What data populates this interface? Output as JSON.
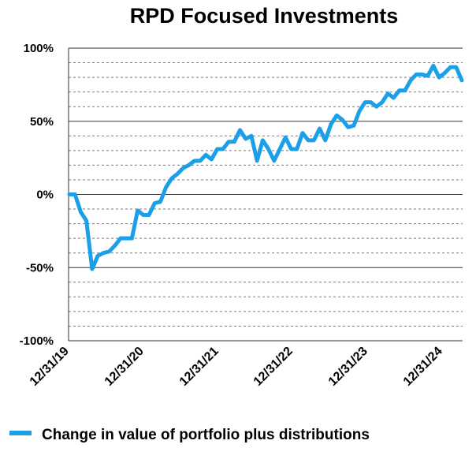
{
  "chart_data": {
    "type": "line",
    "title": "RPD Focused Investments",
    "xlabel": "",
    "ylabel": "",
    "ylim": [
      -100,
      100
    ],
    "y_ticks": [
      {
        "value": 100,
        "label": "100%"
      },
      {
        "value": 50,
        "label": "50%"
      },
      {
        "value": 0,
        "label": "0%"
      },
      {
        "value": -50,
        "label": "-50%"
      },
      {
        "value": -100,
        "label": "-100%"
      }
    ],
    "x_ticks": [
      "12/31/19",
      "12/31/20",
      "12/31/21",
      "12/31/22",
      "12/31/23",
      "12/31/24"
    ],
    "minor_gridline_step": 10,
    "major_gridline_step": 50,
    "grid": true,
    "legend_position": "bottom",
    "line_color": "#1a9fe8",
    "series": [
      {
        "name": "Change in value of portfolio plus distributions",
        "values": [
          0,
          0,
          -12,
          -18,
          -51,
          -42,
          -40,
          -39,
          -35,
          -30,
          -30,
          -30,
          -11,
          -14,
          -14,
          -6,
          -5,
          5,
          11,
          14,
          18,
          20,
          23,
          23,
          27,
          24,
          31,
          31,
          36,
          36,
          44,
          38,
          40,
          23,
          37,
          31,
          23,
          31,
          39,
          31,
          31,
          42,
          37,
          37,
          45,
          37,
          48,
          54,
          51,
          46,
          47,
          57,
          63,
          63,
          60,
          63,
          69,
          66,
          71,
          71,
          78,
          82,
          82,
          81,
          88,
          80,
          83,
          87,
          87,
          78
        ]
      }
    ]
  }
}
